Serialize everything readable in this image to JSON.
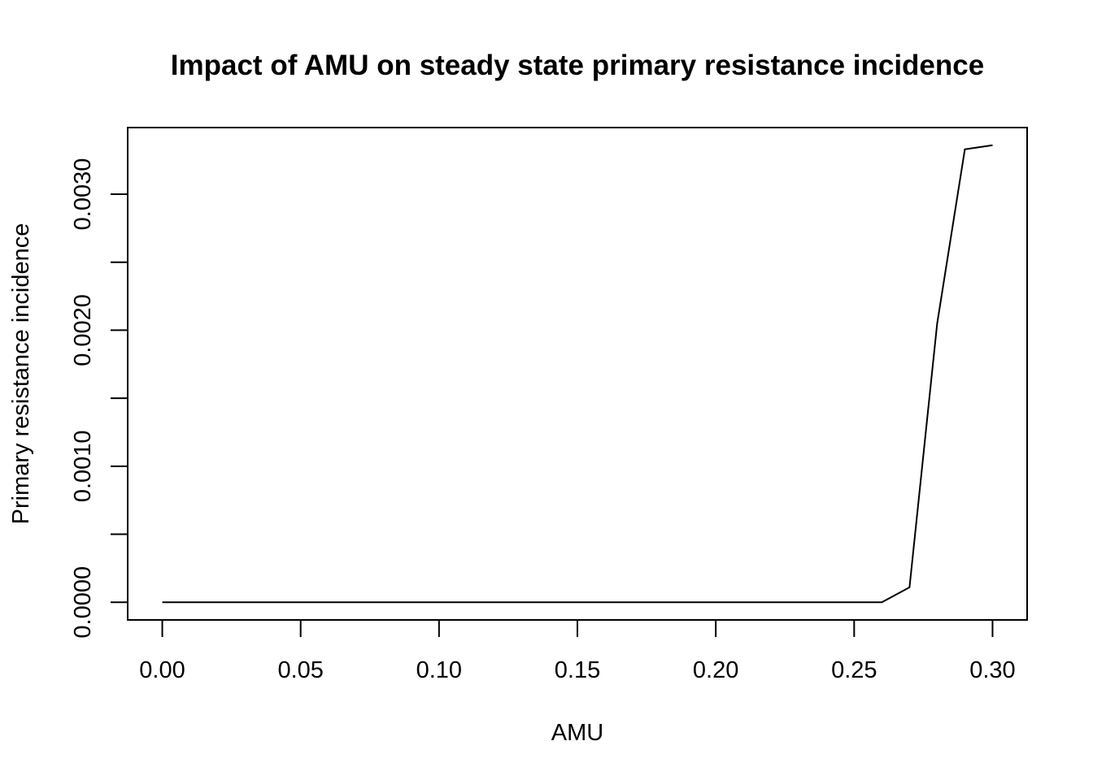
{
  "chart_data": {
    "type": "line",
    "title": "Impact of AMU on steady state primary resistance incidence",
    "xlabel": "AMU",
    "ylabel": "Primary resistance incidence",
    "xlim": [
      -0.0125,
      0.3125
    ],
    "ylim": [
      -0.00013,
      0.00349
    ],
    "x_ticks": [
      0.0,
      0.05,
      0.1,
      0.15,
      0.2,
      0.25,
      0.3
    ],
    "x_tick_labels": [
      "0.00",
      "0.05",
      "0.10",
      "0.15",
      "0.20",
      "0.25",
      "0.30"
    ],
    "y_ticks": [
      0.0,
      0.0005,
      0.001,
      0.0015,
      0.002,
      0.0025,
      0.003
    ],
    "y_tick_labels": [
      "0.0000",
      "",
      "0.0010",
      "",
      "0.0020",
      "",
      "0.0030"
    ],
    "grid": false,
    "series": [
      {
        "x": [
          0.0,
          0.01,
          0.02,
          0.03,
          0.04,
          0.05,
          0.06,
          0.07,
          0.08,
          0.09,
          0.1,
          0.11,
          0.12,
          0.13,
          0.14,
          0.15,
          0.16,
          0.17,
          0.18,
          0.19,
          0.2,
          0.21,
          0.22,
          0.23,
          0.24,
          0.25,
          0.26,
          0.27,
          0.28,
          0.29,
          0.3
        ],
        "y": [
          0,
          0,
          0,
          0,
          0,
          0,
          0,
          0,
          0,
          0,
          0,
          0,
          0,
          0,
          0,
          0,
          0,
          0,
          0,
          0,
          0,
          0,
          0,
          0,
          0,
          0,
          0,
          0.00011,
          0.00205,
          0.00333,
          0.00336
        ],
        "color": "#000000"
      }
    ]
  }
}
